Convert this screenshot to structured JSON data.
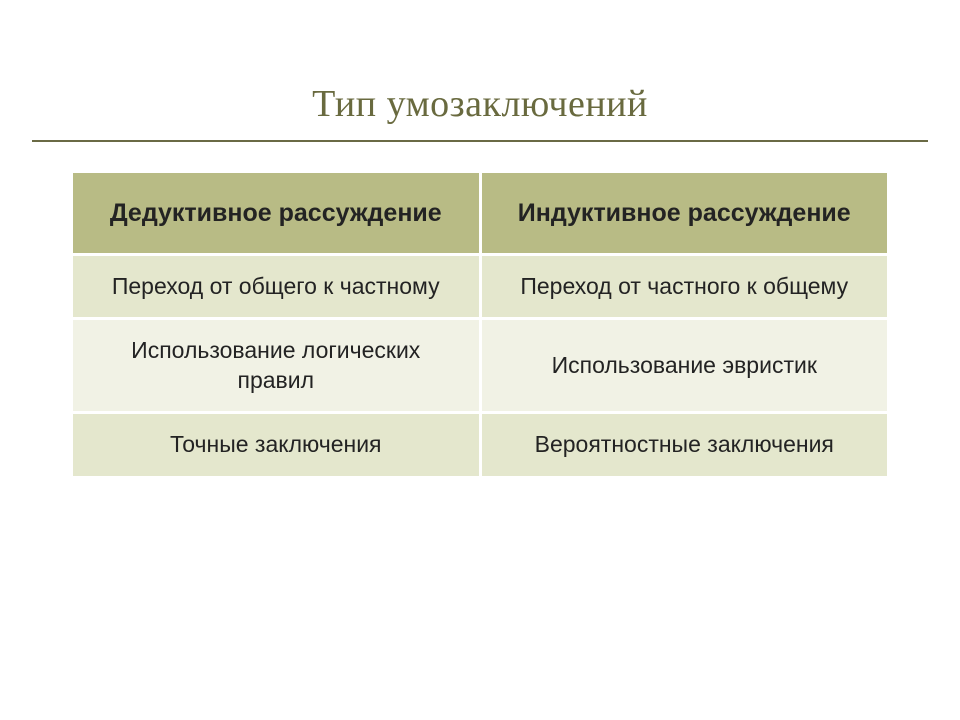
{
  "title": "Тип умозаключений",
  "table": {
    "type": "table",
    "header_bg": "#b8bb85",
    "row_bg_a": "#e4e7cd",
    "row_bg_b": "#f1f2e5",
    "border_color": "#ffffff",
    "title_color": "#696a3f",
    "rule_color": "#6a6a45",
    "headers": [
      "Дедуктивное рассуждение",
      "Индуктивное рассуждение"
    ],
    "rows": [
      [
        "Переход от общего к частному",
        "Переход от частного к общему"
      ],
      [
        "Использование логических правил",
        "Использование эвристик"
      ],
      [
        "Точные заключения",
        "Вероятностные заключения"
      ]
    ]
  }
}
